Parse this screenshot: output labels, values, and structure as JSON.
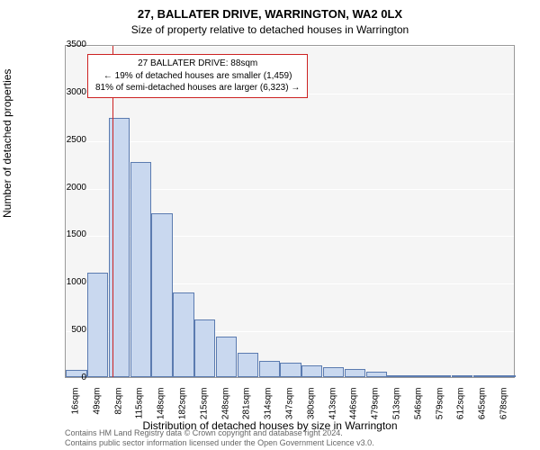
{
  "title_main": "27, BALLATER DRIVE, WARRINGTON, WA2 0LX",
  "title_sub": "Size of property relative to detached houses in Warrington",
  "y_label": "Number of detached properties",
  "x_label": "Distribution of detached houses by size in Warrington",
  "chart": {
    "type": "histogram",
    "background_color": "#f2f2f2",
    "grid_color": "#ffffff",
    "bar_fill": "#c9d8ef",
    "bar_stroke": "#5b7bb0",
    "marker_color": "#cc2222",
    "ylim": [
      0,
      3500
    ],
    "ytick_step": 500,
    "yticks": [
      0,
      500,
      1000,
      1500,
      2000,
      2500,
      3000,
      3500
    ],
    "x_categories": [
      "16sqm",
      "49sqm",
      "82sqm",
      "115sqm",
      "148sqm",
      "182sqm",
      "215sqm",
      "248sqm",
      "281sqm",
      "314sqm",
      "347sqm",
      "380sqm",
      "413sqm",
      "446sqm",
      "479sqm",
      "513sqm",
      "546sqm",
      "579sqm",
      "612sqm",
      "645sqm",
      "678sqm"
    ],
    "values": [
      80,
      1100,
      2720,
      2260,
      1720,
      890,
      610,
      430,
      260,
      170,
      150,
      120,
      100,
      90,
      60,
      20,
      15,
      10,
      10,
      8,
      5
    ],
    "marker_index": 2.18
  },
  "info_box": {
    "border_color": "#cc2222",
    "line1": "27 BALLATER DRIVE: 88sqm",
    "line2": "← 19% of detached houses are smaller (1,459)",
    "line3": "81% of semi-detached houses are larger (6,323) →"
  },
  "footer": {
    "line1": "Contains HM Land Registry data © Crown copyright and database right 2024.",
    "line2": "Contains public sector information licensed under the Open Government Licence v3.0."
  }
}
